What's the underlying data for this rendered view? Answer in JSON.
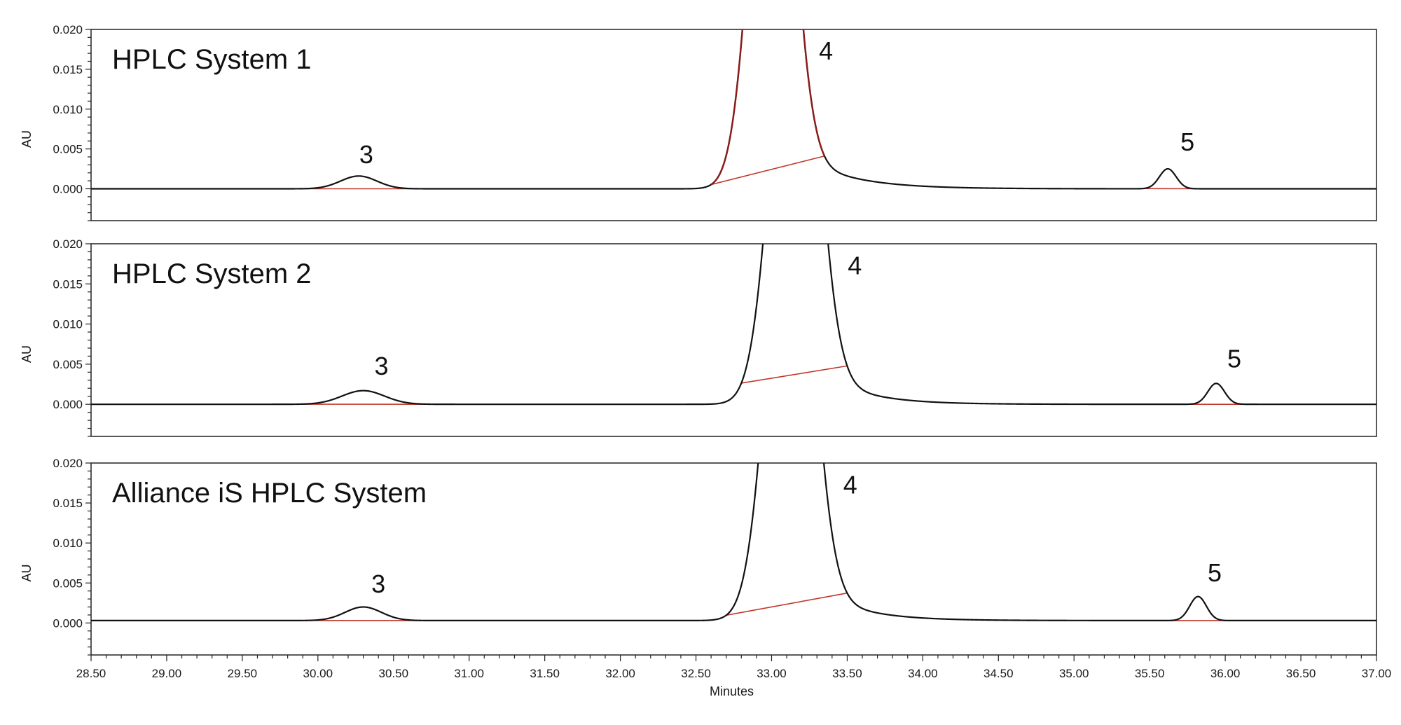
{
  "chart_data": {
    "type": "line",
    "title": "",
    "xlabel": "Minutes",
    "ylabel": "AU",
    "xlim": [
      28.5,
      37.0
    ],
    "ylim": [
      -0.004,
      0.02
    ],
    "x_ticks": [
      "28.50",
      "29.00",
      "29.50",
      "30.00",
      "30.50",
      "31.00",
      "31.50",
      "32.00",
      "32.50",
      "33.00",
      "33.50",
      "34.00",
      "34.50",
      "35.00",
      "35.50",
      "36.00",
      "36.50",
      "37.00"
    ],
    "y_ticks": [
      "0.020",
      "0.015",
      "0.010",
      "0.005",
      "0.000"
    ],
    "colors": {
      "trace": "#111111",
      "integration": "#c0392b",
      "peak4_system1": "#8b1a1a",
      "frame": "#222222"
    },
    "panels": [
      {
        "title": "HPLC System 1",
        "baseline": 0.0,
        "peaks": [
          {
            "label": "3",
            "center": 30.27,
            "width": 0.12,
            "height": 0.0016,
            "integration": [
              29.8,
              30.75
            ],
            "label_x": 30.32,
            "label_y": 0.0032
          },
          {
            "label": "4",
            "center": 33.0,
            "width": 0.13,
            "height": 0.06,
            "tail": 0.0075,
            "tail_tau": 0.32,
            "integration": [
              32.6,
              33.35
            ],
            "label_x": 33.36,
            "label_y": 0.0162
          },
          {
            "label": "5",
            "center": 35.62,
            "width": 0.055,
            "height": 0.0025,
            "integration": [
              35.45,
              35.9
            ],
            "label_x": 35.75,
            "label_y": 0.0048
          }
        ],
        "trace_color_key": "peak4_system1"
      },
      {
        "title": "HPLC System 2",
        "baseline": 0.0,
        "peaks": [
          {
            "label": "3",
            "center": 30.3,
            "width": 0.14,
            "height": 0.0017,
            "integration": [
              29.85,
              30.85
            ],
            "label_x": 30.42,
            "label_y": 0.0037
          },
          {
            "label": "4",
            "center": 33.15,
            "width": 0.14,
            "height": 0.06,
            "tail": 0.0075,
            "tail_tau": 0.28,
            "integration": [
              32.8,
              33.5
            ],
            "label_x": 33.55,
            "label_y": 0.0162
          },
          {
            "label": "5",
            "center": 35.94,
            "width": 0.055,
            "height": 0.0026,
            "integration": [
              35.7,
              36.2
            ],
            "label_x": 36.06,
            "label_y": 0.0046
          }
        ]
      },
      {
        "title": "Alliance iS HPLC System",
        "baseline": 0.0003,
        "peaks": [
          {
            "label": "3",
            "center": 30.3,
            "width": 0.12,
            "height": 0.0017,
            "integration": [
              29.9,
              30.8
            ],
            "label_x": 30.4,
            "label_y": 0.0038
          },
          {
            "label": "4",
            "center": 33.12,
            "width": 0.14,
            "height": 0.06,
            "tail": 0.0075,
            "tail_tau": 0.28,
            "integration": [
              32.7,
              33.5
            ],
            "label_x": 33.52,
            "label_y": 0.0162
          },
          {
            "label": "5",
            "center": 35.82,
            "width": 0.055,
            "height": 0.003,
            "integration": [
              35.55,
              36.05
            ],
            "label_x": 35.93,
            "label_y": 0.0052
          }
        ]
      }
    ]
  }
}
